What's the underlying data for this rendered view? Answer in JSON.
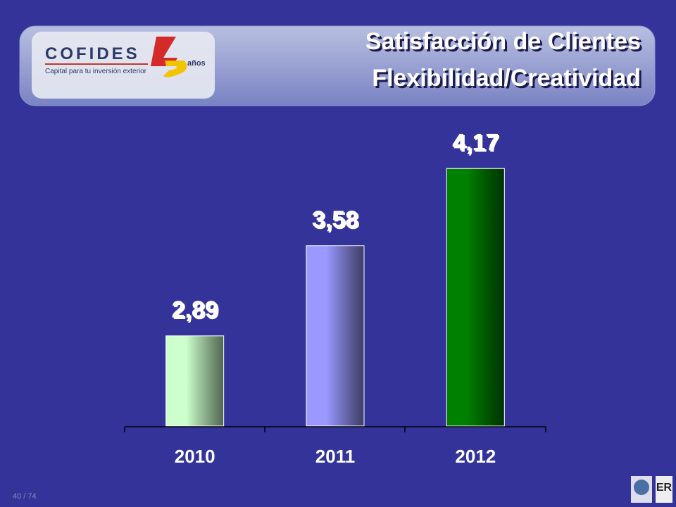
{
  "header": {
    "logo": "COFIDES",
    "logo_tagline": "Capital para tu inversión exterior",
    "logo_badge": "años"
  },
  "chart_data": {
    "type": "bar",
    "title": "Satisfacción de Clientes",
    "subtitle": "Flexibilidad/Creatividad",
    "categories": [
      "2010",
      "2011",
      "2012"
    ],
    "values": [
      2.89,
      3.58,
      4.17
    ],
    "value_labels": [
      "2,89",
      "3,58",
      "4,17"
    ],
    "colors": [
      "#ccffcc",
      "#9999ff",
      "#008000"
    ],
    "ylim": [
      2.2,
      4.5
    ]
  },
  "footer": {
    "page": "40 / 74"
  }
}
